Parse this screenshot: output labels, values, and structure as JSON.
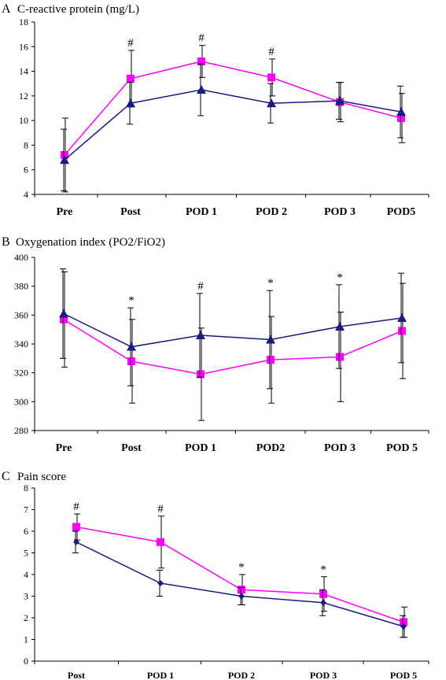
{
  "chart_data": [
    {
      "type": "line",
      "panel": "A",
      "title": "C-reactive protein (mg/L)",
      "categories": [
        "Pre",
        "Post",
        "POD 1",
        "POD 2",
        "POD 3",
        "POD5"
      ],
      "ylim": [
        4,
        18
      ],
      "yticks": [
        4,
        6,
        8,
        10,
        12,
        14,
        16,
        18
      ],
      "grid": false,
      "series": [
        {
          "marker": "square",
          "color": "#ff00ff",
          "values": [
            7.2,
            13.4,
            14.8,
            13.5,
            11.5,
            10.2
          ],
          "error": [
            3.0,
            2.3,
            1.3,
            1.5,
            1.6,
            2.0
          ]
        },
        {
          "marker": "triangle",
          "color": "#1a1a80",
          "values": [
            6.8,
            11.4,
            12.5,
            11.4,
            11.6,
            10.7
          ],
          "error": [
            2.5,
            1.7,
            2.1,
            1.6,
            1.5,
            2.1
          ]
        }
      ],
      "annotations": [
        {
          "index": 1,
          "text": "#"
        },
        {
          "index": 2,
          "text": "#"
        },
        {
          "index": 3,
          "text": "#"
        }
      ]
    },
    {
      "type": "line",
      "panel": "B",
      "title": "Oxygenation index (PO2/FiO2)",
      "categories": [
        "Pre",
        "Post",
        "POD 1",
        "POD2",
        "POD 3",
        "POD 5"
      ],
      "ylim": [
        280,
        400
      ],
      "yticks": [
        280,
        300,
        320,
        340,
        360,
        380,
        400
      ],
      "grid": false,
      "series": [
        {
          "marker": "square",
          "color": "#ff00ff",
          "values": [
            357,
            328,
            319,
            329,
            331,
            349
          ],
          "error": [
            33,
            29,
            32,
            30,
            31,
            33
          ]
        },
        {
          "marker": "triangle",
          "color": "#1a1a80",
          "values": [
            361,
            338,
            346,
            343,
            352,
            358
          ],
          "error": [
            31,
            27,
            29,
            34,
            29,
            31
          ]
        }
      ],
      "annotations": [
        {
          "index": 1,
          "text": "*"
        },
        {
          "index": 2,
          "text": "#"
        },
        {
          "index": 3,
          "text": "*"
        },
        {
          "index": 4,
          "text": "*"
        }
      ]
    },
    {
      "type": "line",
      "panel": "C",
      "title": "Pain score",
      "categories": [
        "Post",
        "POD 1",
        "POD 2",
        "POD 3",
        "POD 5"
      ],
      "ylim": [
        0,
        8
      ],
      "yticks": [
        0,
        1,
        2,
        3,
        4,
        5,
        6,
        7,
        8
      ],
      "grid": false,
      "series": [
        {
          "marker": "square",
          "color": "#ff00ff",
          "values": [
            6.2,
            5.5,
            3.3,
            3.1,
            1.8
          ],
          "error": [
            0.6,
            1.2,
            0.7,
            0.8,
            0.7
          ]
        },
        {
          "marker": "diamond",
          "color": "#1a1a80",
          "values": [
            5.5,
            3.6,
            3.0,
            2.7,
            1.6
          ],
          "error": [
            0.5,
            0.6,
            0.4,
            0.6,
            0.5
          ]
        }
      ],
      "annotations": [
        {
          "index": 0,
          "text": "#"
        },
        {
          "index": 1,
          "text": "#"
        },
        {
          "index": 2,
          "text": "*"
        },
        {
          "index": 3,
          "text": "*"
        }
      ]
    }
  ]
}
